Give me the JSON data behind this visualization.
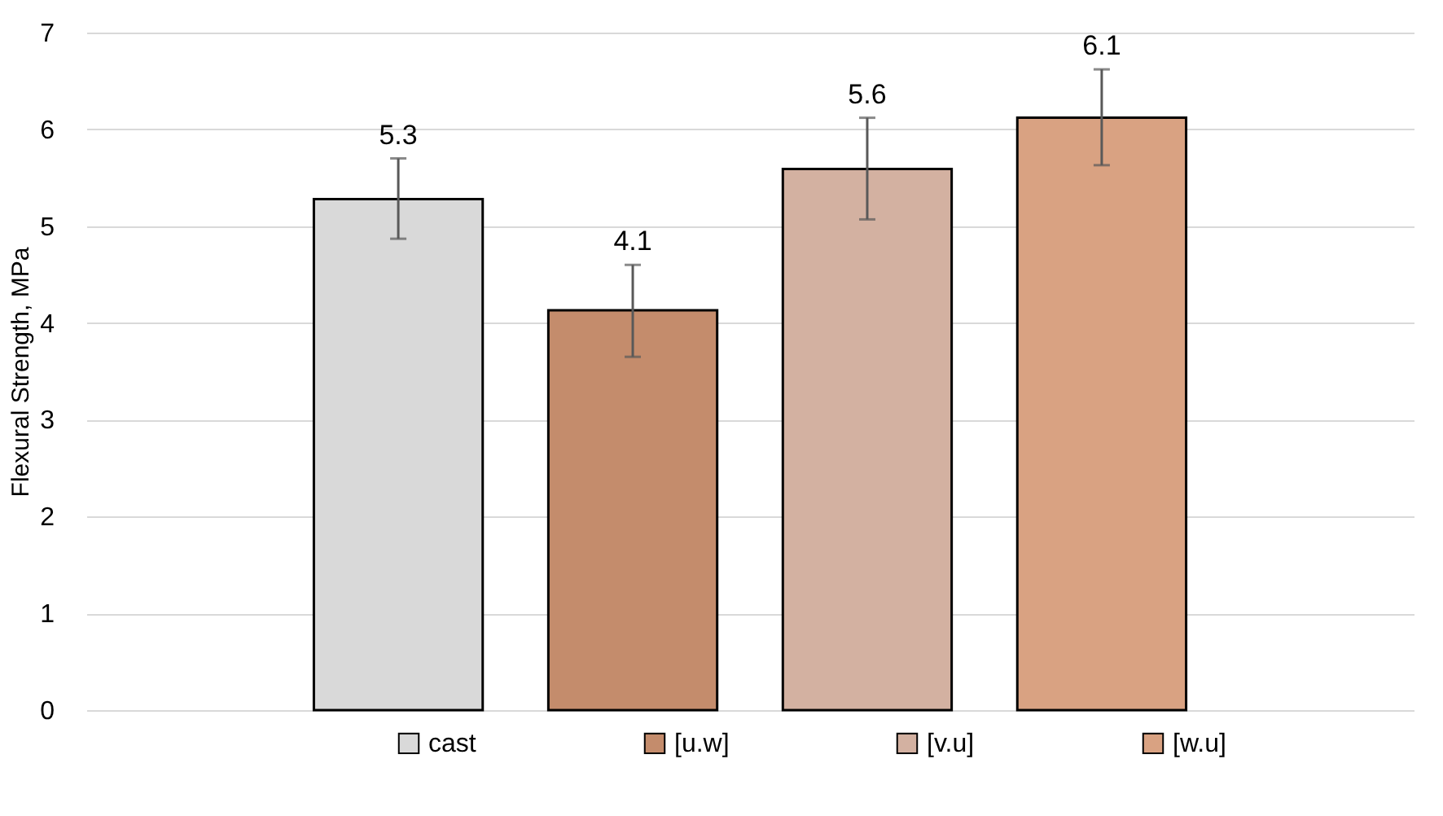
{
  "chart_data": {
    "type": "bar",
    "ylabel": "Flexural Strength, MPa",
    "categories": [
      null
    ],
    "series": [
      {
        "name": "cast",
        "color": "#d9d9d9",
        "values": [
          5.28
        ],
        "errors": [
          [
            4.87,
            5.7
          ]
        ],
        "value_labels": [
          "5.3"
        ]
      },
      {
        "name": "[u.w]",
        "color": "#c48c6c",
        "values": [
          4.13
        ],
        "errors": [
          [
            3.65,
            4.6
          ]
        ],
        "value_labels": [
          "4.1"
        ]
      },
      {
        "name": "[v.u]",
        "color": "#d3b1a1",
        "values": [
          5.59
        ],
        "errors": [
          [
            5.07,
            6.12
          ]
        ],
        "value_labels": [
          "5.6"
        ]
      },
      {
        "name": "[w.u]",
        "color": "#d9a282",
        "values": [
          6.12
        ],
        "errors": [
          [
            5.63,
            6.62
          ]
        ],
        "value_labels": [
          "6.1"
        ]
      }
    ],
    "ylim": [
      0,
      7
    ],
    "yticks": [
      0,
      1,
      2,
      3,
      4,
      5,
      6,
      7
    ],
    "grid": "y",
    "legend": "bottom"
  }
}
